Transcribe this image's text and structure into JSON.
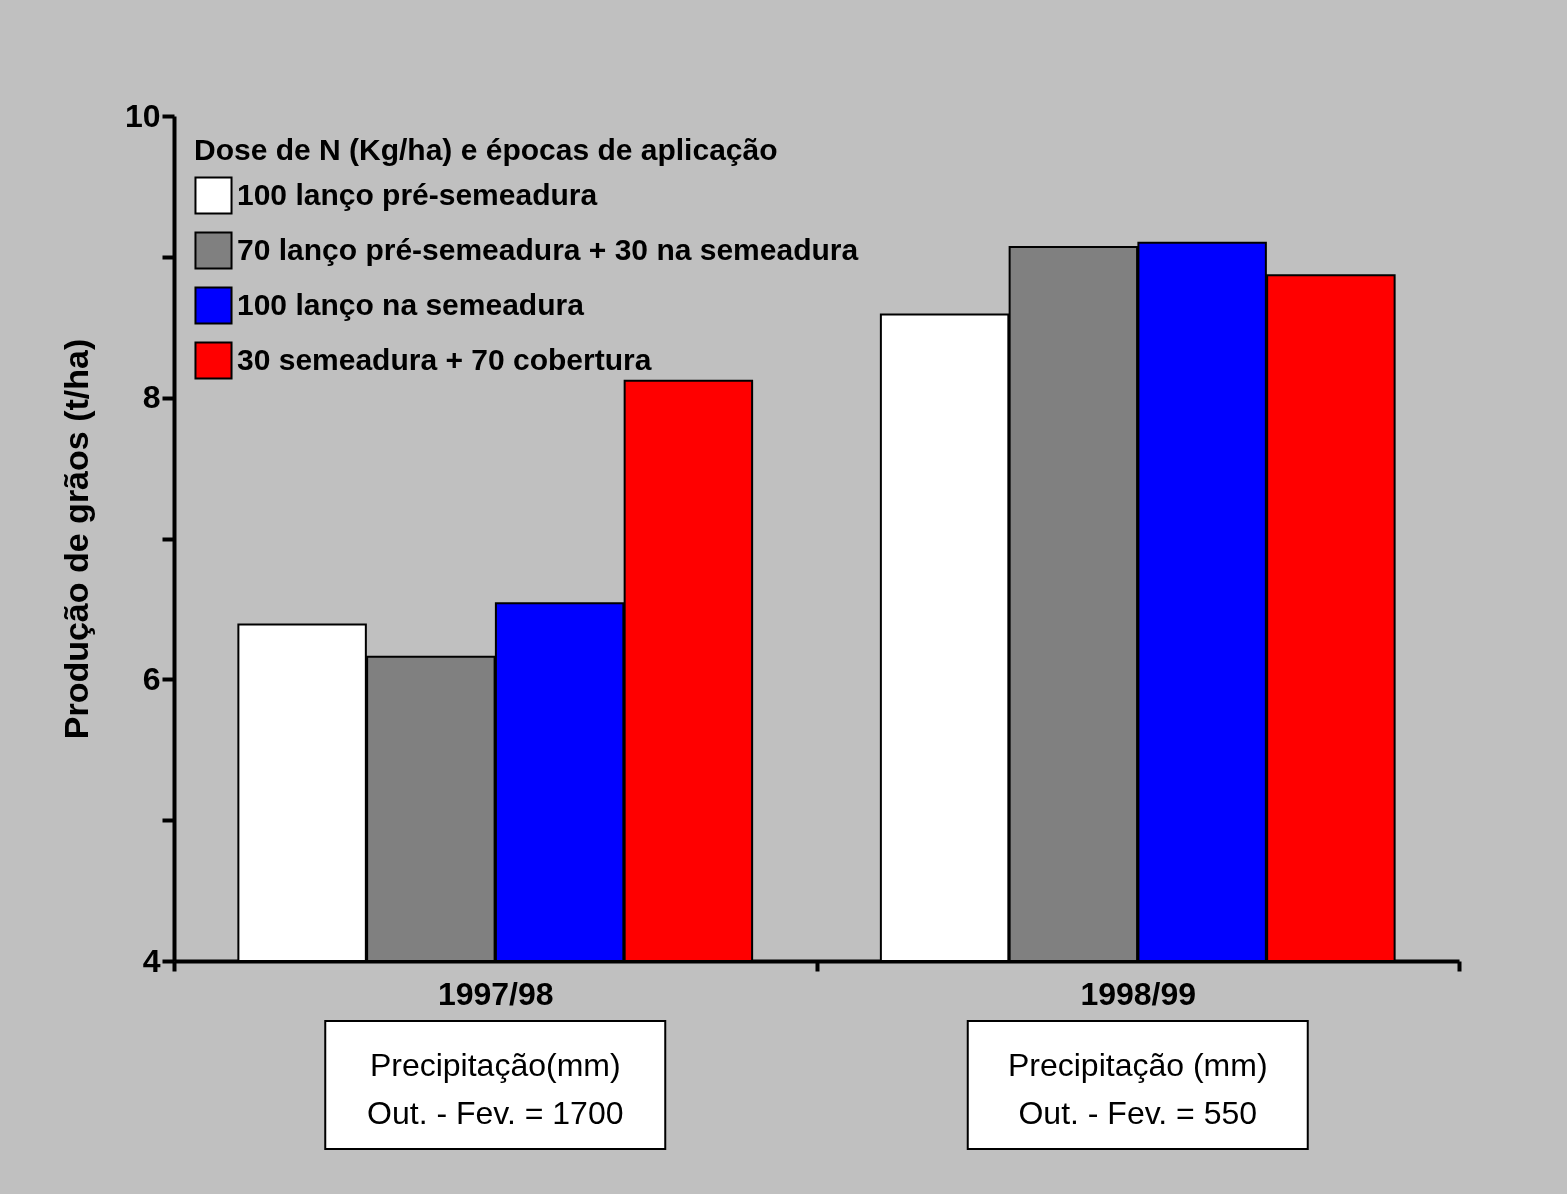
{
  "chart_data": {
    "type": "bar",
    "ylabel": "Produção de grãos (t/ha)",
    "legend_title": "Dose de N (Kg/ha) e épocas de aplicação",
    "categories": [
      "1997/98",
      "1998/99"
    ],
    "series": [
      {
        "name": "100 lanço pré-semeadura",
        "color": "#ffffff",
        "values": [
          6.39,
          8.59
        ]
      },
      {
        "name": "70 lanço pré-semeadura + 30 na semeadura",
        "color": "#808080",
        "values": [
          6.16,
          9.07
        ]
      },
      {
        "name": "100 lanço na semeadura",
        "color": "#0000ff",
        "values": [
          6.54,
          9.1
        ]
      },
      {
        "name": "30 semeadura + 70 cobertura",
        "color": "#ff0000",
        "values": [
          8.12,
          8.87
        ]
      }
    ],
    "ylim": [
      4,
      10
    ],
    "yticks": [
      4,
      {
        "value": 5,
        "label": null
      },
      6,
      {
        "value": 7,
        "label": null
      },
      8,
      {
        "value": 9,
        "label": null
      },
      10
    ],
    "legend": "top left",
    "grid": false,
    "annotations": [
      "Precipitação(mm)\nOut. - Fev. = 1700",
      "Precipitação (mm)\nOut. - Fev. = 550"
    ]
  }
}
